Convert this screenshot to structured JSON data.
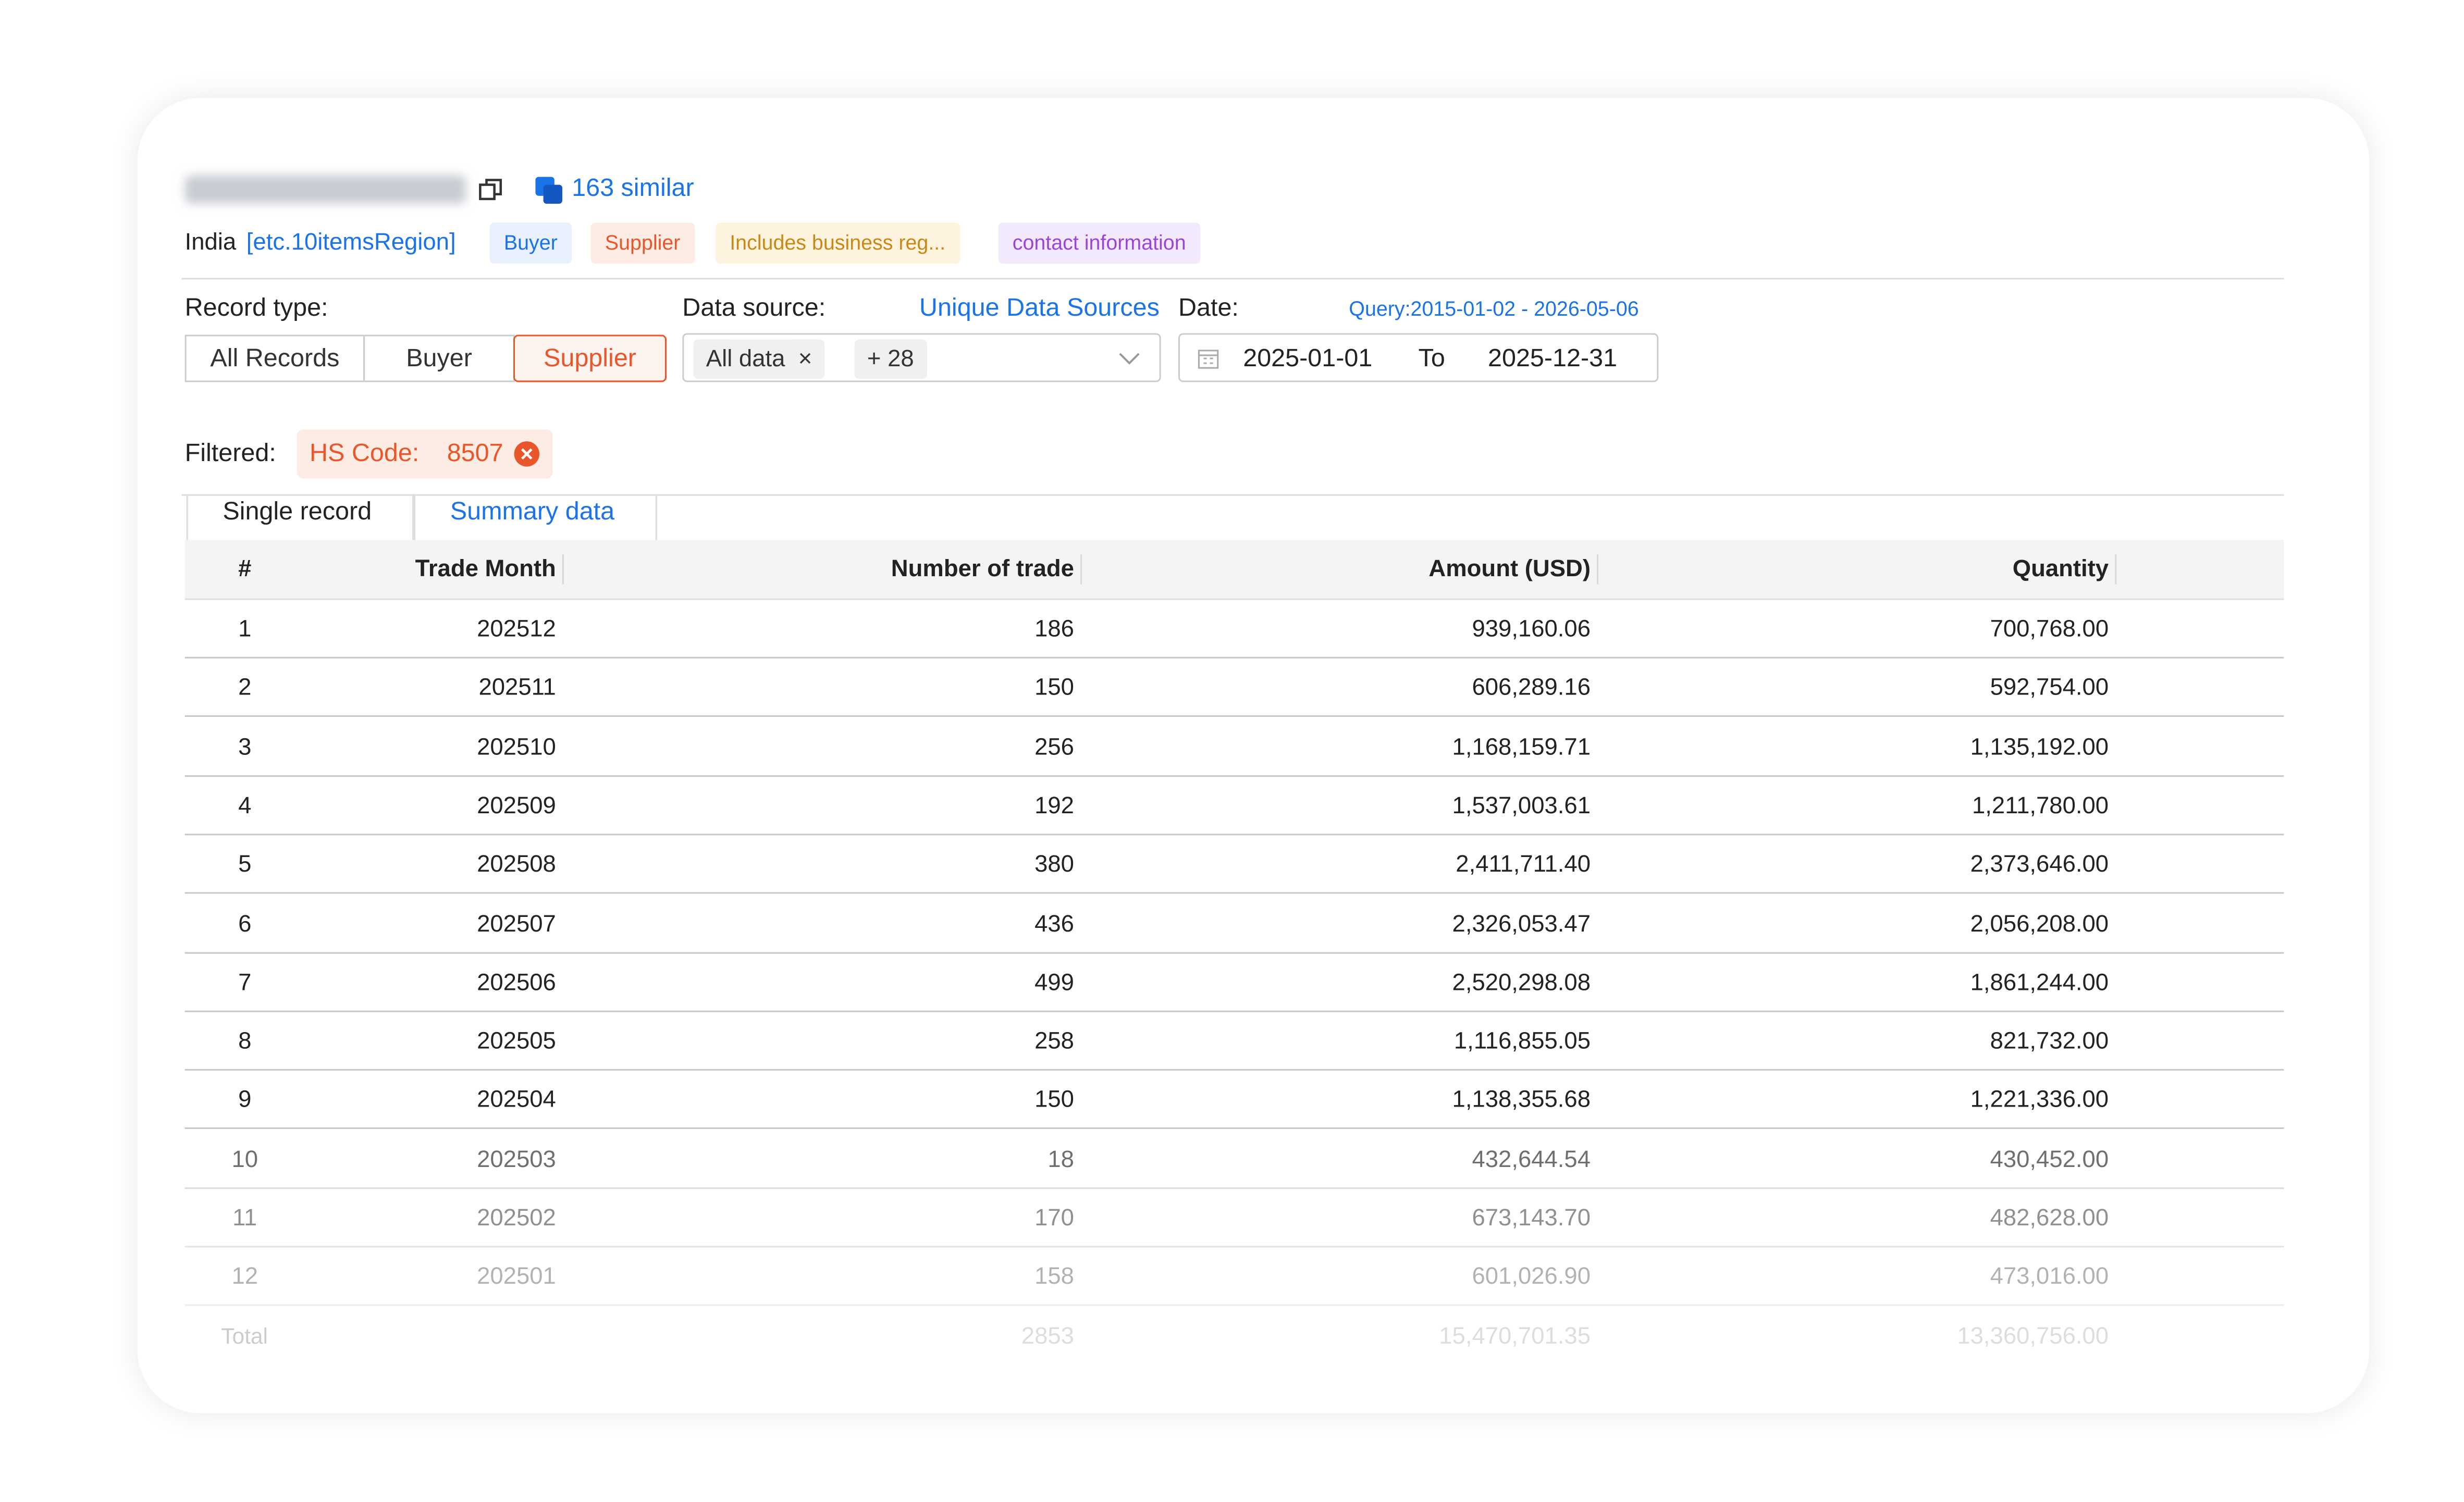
{
  "header": {
    "similar": "163 similar",
    "country": "India",
    "region": "[etc.10itemsRegion]",
    "tags": [
      "Buyer",
      "Supplier",
      "Includes business reg...",
      "contact information"
    ]
  },
  "filters": {
    "record_type_label": "Record type:",
    "record_types": [
      "All Records",
      "Buyer",
      "Supplier"
    ],
    "data_source_label": "Data source:",
    "unique_link": "Unique Data Sources",
    "date_label": "Date:",
    "query": "Query:2015-01-02 - 2026-05-06",
    "data_chips": [
      "All data",
      "+ 28"
    ],
    "date_from": "2025-01-01",
    "to": "To",
    "date_to": "2025-12-31",
    "filtered_label": "Filtered:",
    "filter_chip_label": "HS Code:",
    "filter_chip_value": "8507"
  },
  "tabs": [
    "Single record",
    "Summary data"
  ],
  "table": {
    "columns": [
      "#",
      "Trade Month",
      "Number of trade",
      "Amount (USD)",
      "Quantity"
    ],
    "rows": [
      [
        "1",
        "202512",
        "186",
        "939,160.06",
        "700,768.00"
      ],
      [
        "2",
        "202511",
        "150",
        "606,289.16",
        "592,754.00"
      ],
      [
        "3",
        "202510",
        "256",
        "1,168,159.71",
        "1,135,192.00"
      ],
      [
        "4",
        "202509",
        "192",
        "1,537,003.61",
        "1,211,780.00"
      ],
      [
        "5",
        "202508",
        "380",
        "2,411,711.40",
        "2,373,646.00"
      ],
      [
        "6",
        "202507",
        "436",
        "2,326,053.47",
        "2,056,208.00"
      ],
      [
        "7",
        "202506",
        "499",
        "2,520,298.08",
        "1,861,244.00"
      ],
      [
        "8",
        "202505",
        "258",
        "1,116,855.05",
        "821,732.00"
      ],
      [
        "9",
        "202504",
        "150",
        "1,138,355.68",
        "1,221,336.00"
      ],
      [
        "10",
        "202503",
        "18",
        "432,644.54",
        "430,452.00"
      ],
      [
        "11",
        "202502",
        "170",
        "673,143.70",
        "482,628.00"
      ],
      [
        "12",
        "202501",
        "158",
        "601,026.90",
        "473,016.00"
      ]
    ],
    "total": {
      "label": "Total",
      "values": [
        "2853",
        "15,470,701.35",
        "13,360,756.00"
      ]
    }
  }
}
